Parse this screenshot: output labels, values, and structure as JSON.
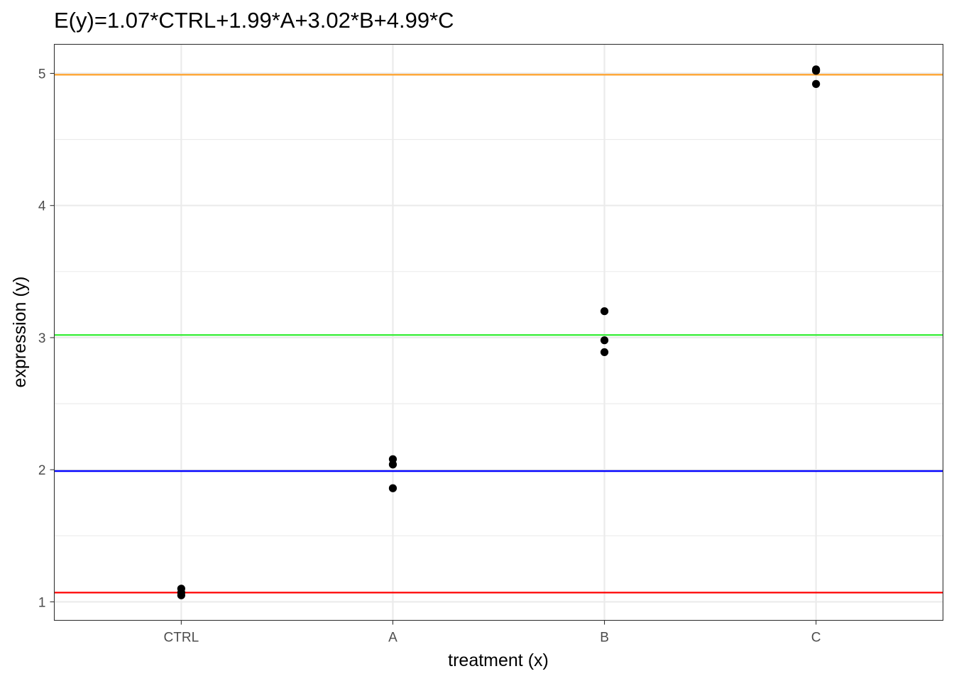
{
  "chart_data": {
    "type": "scatter",
    "title": "E(y)=1.07*CTRL+1.99*A+3.02*B+4.99*C",
    "xlabel": "treatment (x)",
    "ylabel": "expression (y)",
    "categories": [
      "CTRL",
      "A",
      "B",
      "C"
    ],
    "y_ticks": [
      1,
      2,
      3,
      4,
      5
    ],
    "ylim": [
      0.86,
      5.22
    ],
    "grid": true,
    "points": [
      {
        "x": "CTRL",
        "y": 1.1
      },
      {
        "x": "CTRL",
        "y": 1.07
      },
      {
        "x": "CTRL",
        "y": 1.05
      },
      {
        "x": "A",
        "y": 2.08
      },
      {
        "x": "A",
        "y": 2.04
      },
      {
        "x": "A",
        "y": 1.86
      },
      {
        "x": "B",
        "y": 3.2
      },
      {
        "x": "B",
        "y": 2.98
      },
      {
        "x": "B",
        "y": 2.89
      },
      {
        "x": "C",
        "y": 5.03
      },
      {
        "x": "C",
        "y": 5.02
      },
      {
        "x": "C",
        "y": 4.92
      }
    ],
    "hlines": [
      {
        "y": 1.07,
        "color": "#ff0000"
      },
      {
        "y": 1.99,
        "color": "#0000ff"
      },
      {
        "y": 3.02,
        "color": "#33ee33"
      },
      {
        "y": 4.99,
        "color": "#ffa533"
      }
    ],
    "point_color": "#000000",
    "grid_color": "#ebebeb"
  }
}
